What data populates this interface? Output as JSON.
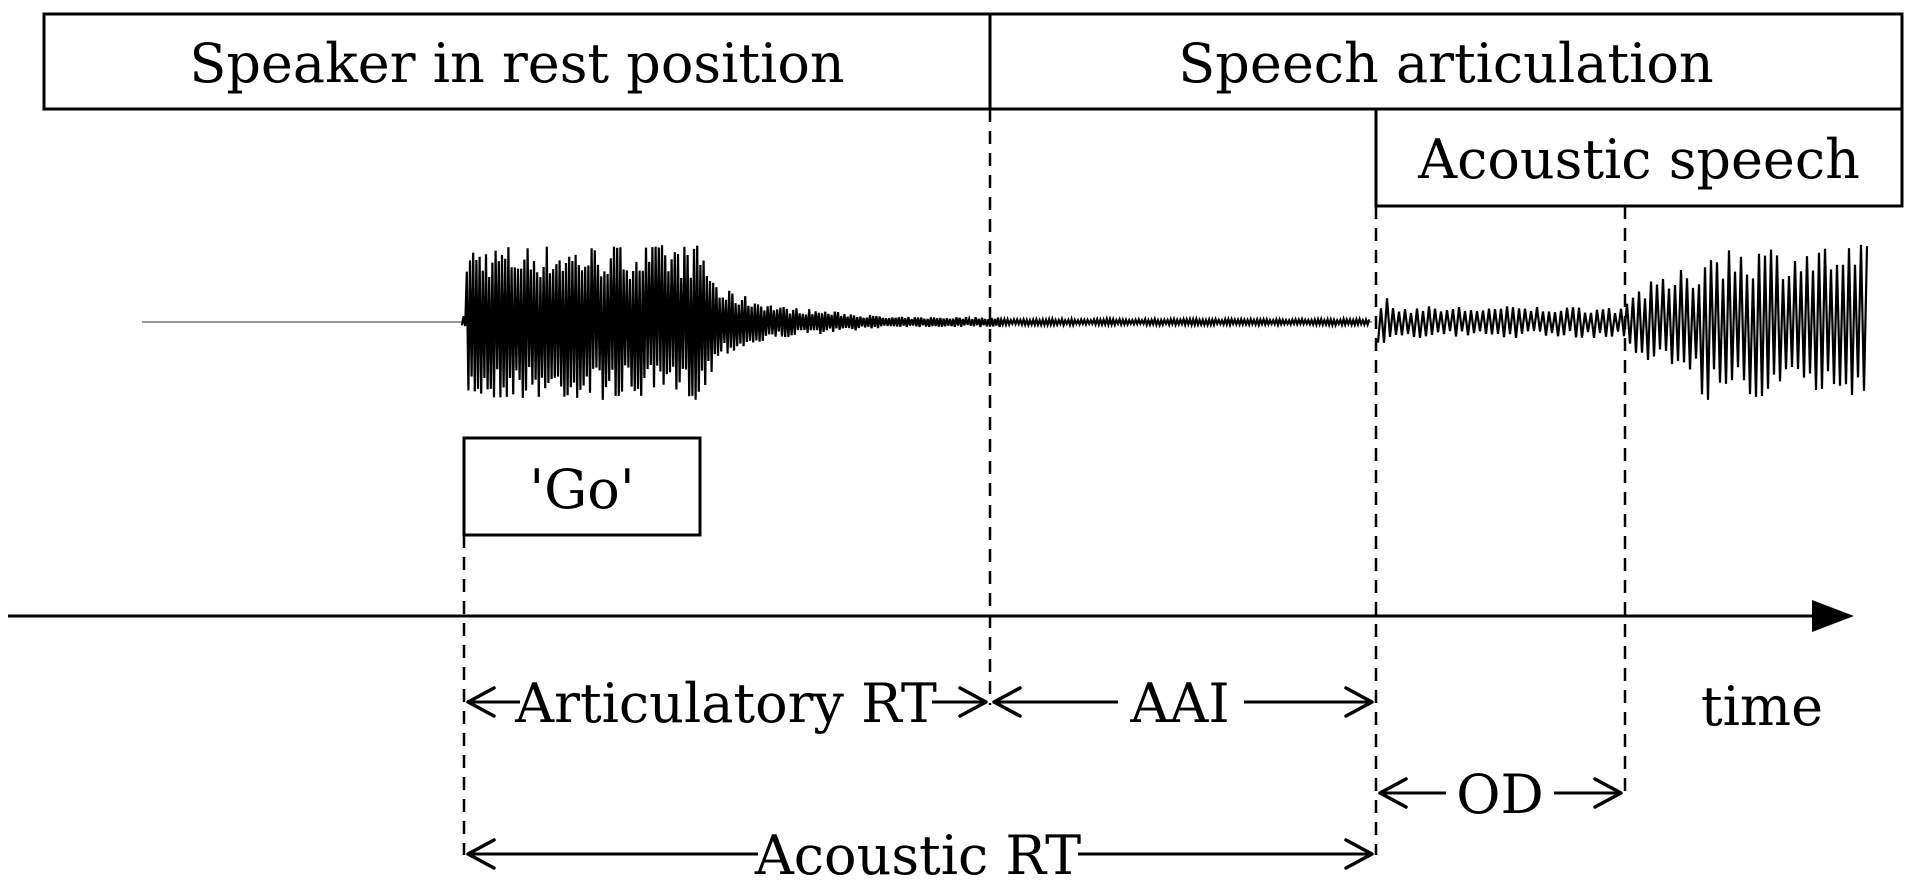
{
  "labels": {
    "rest": "Speaker in rest position",
    "articulation": "Speech articulation",
    "acoustic_speech": "Acoustic speech",
    "go": "'Go'",
    "articulatory_rt": "Articulatory RT",
    "aai": "AAI",
    "od": "OD",
    "acoustic_rt": "Acoustic RT",
    "time": "time"
  },
  "colors": {
    "ink": "#000000",
    "background": "#ffffff",
    "baseline": "#9a9a9a"
  }
}
